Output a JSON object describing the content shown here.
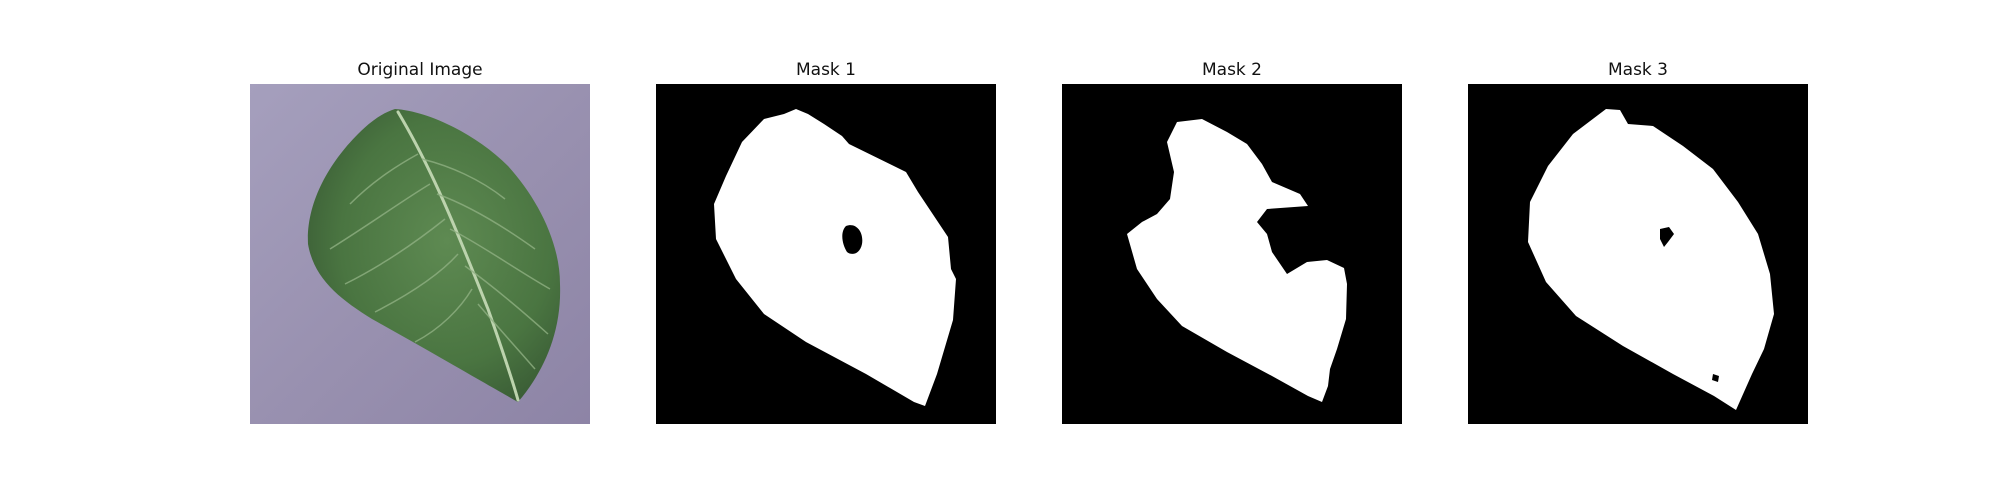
{
  "figure": {
    "panels": [
      {
        "title": "Original Image",
        "content": "leaf-photo"
      },
      {
        "title": "Mask 1",
        "content": "binary-mask"
      },
      {
        "title": "Mask 2",
        "content": "binary-mask"
      },
      {
        "title": "Mask 3",
        "content": "binary-mask"
      }
    ],
    "colors": {
      "background_surface": "#9890b0",
      "leaf_green": "#4f7a45",
      "leaf_dark": "#3a5e35",
      "leaf_vein": "#a9c69c",
      "mask_background": "#000000",
      "mask_foreground": "#ffffff"
    }
  }
}
